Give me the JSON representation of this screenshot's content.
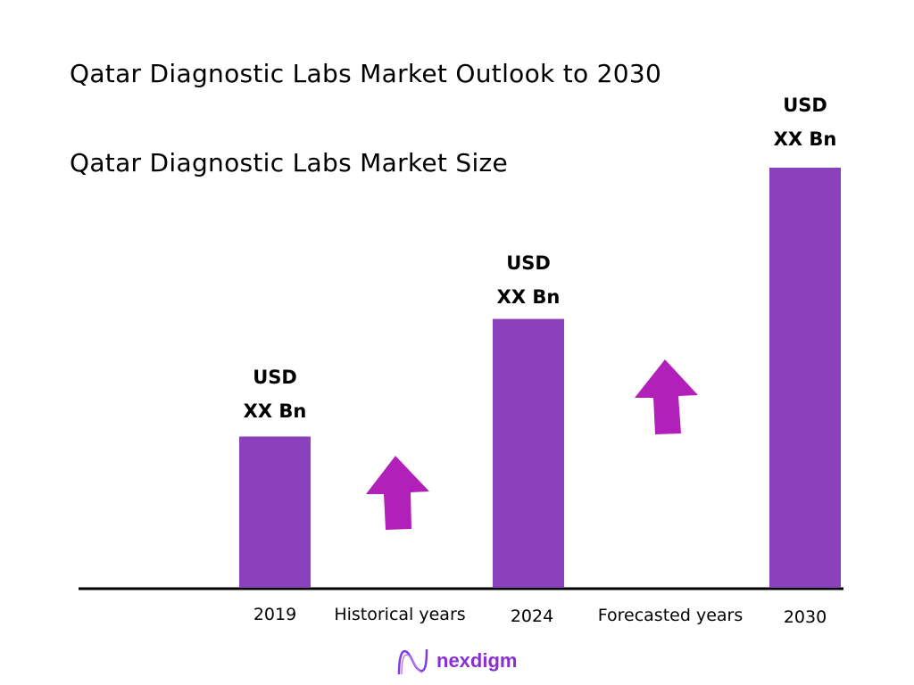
{
  "chart_data": {
    "type": "bar",
    "title": "Qatar Diagnostic Labs Market Outlook to 2030",
    "subtitle": "Qatar Diagnostic Labs Market Size",
    "categories": [
      "2019",
      "2024",
      "2030"
    ],
    "data_labels": [
      {
        "line1": "USD",
        "line2": "XX Bn"
      },
      {
        "line1": "USD",
        "line2": "XX Bn"
      },
      {
        "line1": "USD",
        "line2": "XX Bn"
      }
    ],
    "relative_values": [
      36,
      64,
      100
    ],
    "period_labels": [
      "Historical years",
      "Forecasted years"
    ],
    "grid": false,
    "bar_color": "#8b41bb",
    "arrow_color": "#b220ba",
    "axis_color": "#000000"
  },
  "brand": {
    "name": "nexdigm",
    "color": "#8a2fd0"
  }
}
